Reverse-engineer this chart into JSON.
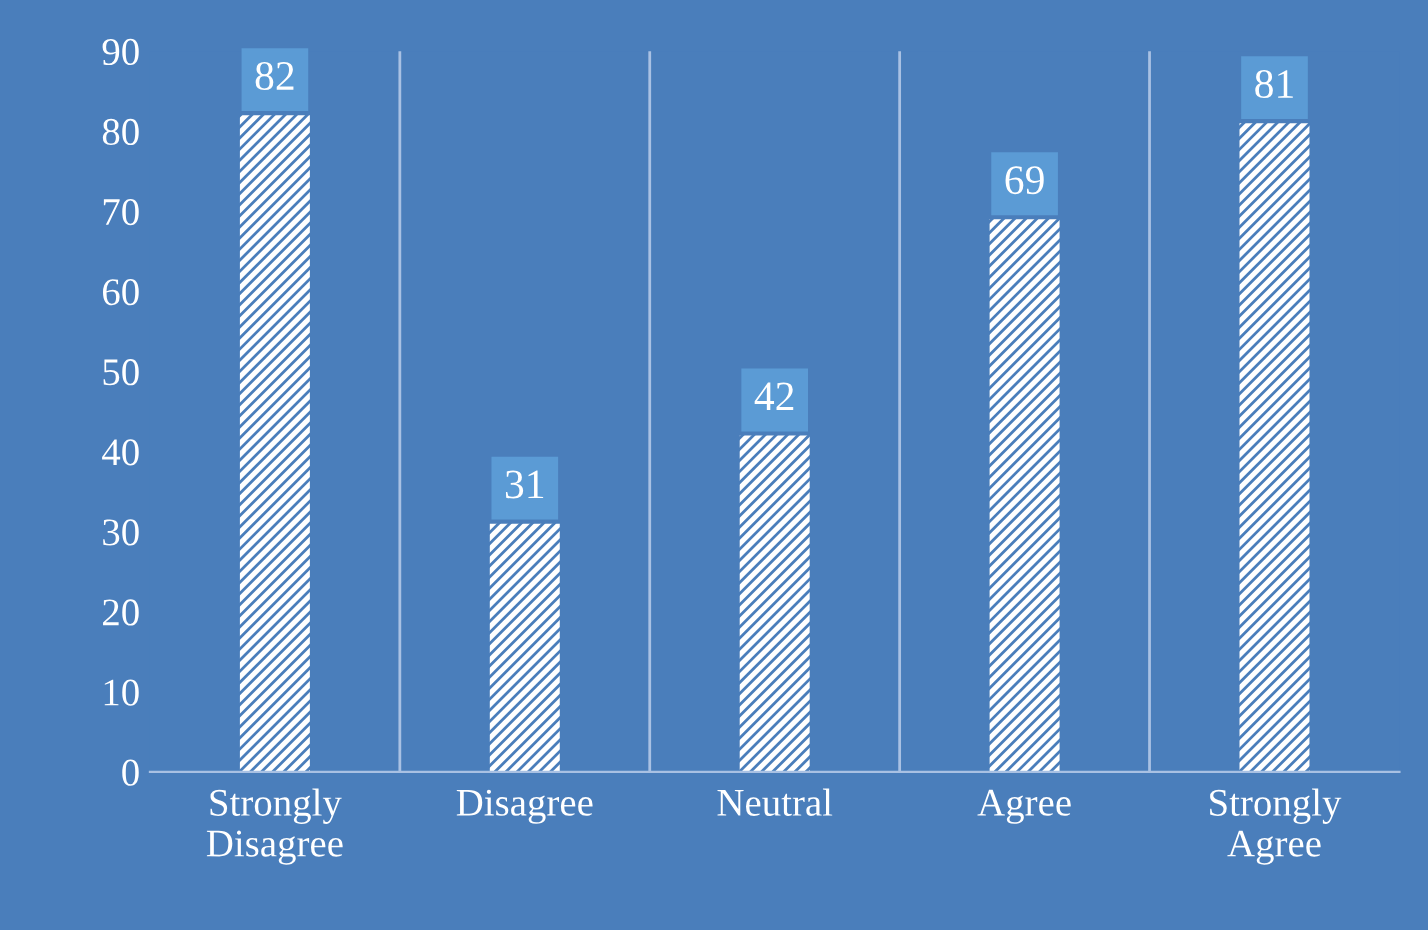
{
  "chart_data": {
    "type": "bar",
    "categories": [
      "Strongly\nDisagree",
      "Disagree",
      "Neutral",
      "Agree",
      "Strongly\nAgree"
    ],
    "values": [
      82,
      31,
      42,
      69,
      81
    ],
    "color": "#ffffff",
    "ylim": [
      0,
      90
    ],
    "yticks": [
      0,
      10,
      20,
      30,
      40,
      50,
      60,
      70,
      80,
      90
    ],
    "grid": "x",
    "data_labels": true,
    "legend": false
  }
}
